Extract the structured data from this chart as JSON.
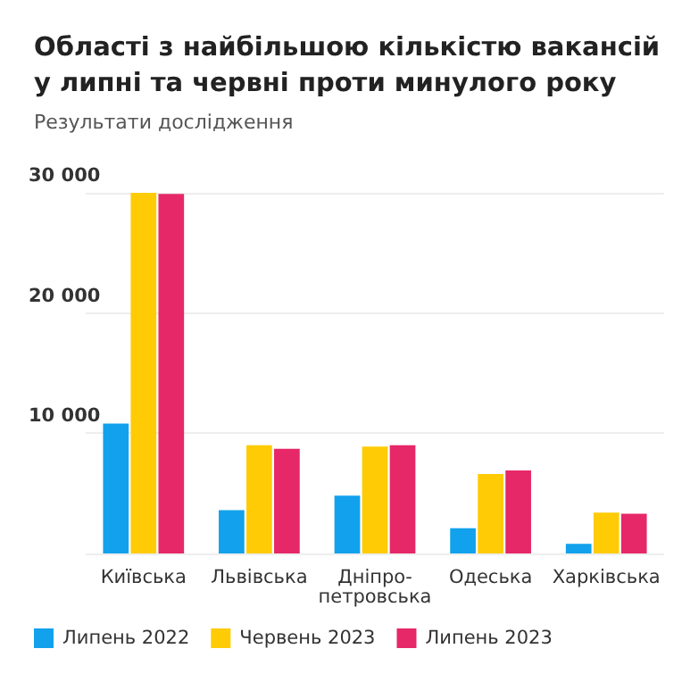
{
  "chart_data": {
    "type": "bar",
    "title": "Області з найбільшою кількістю вакансій\nу липні та червні проти минулого року",
    "subtitle": "Результати дослідження",
    "categories": [
      "Київська",
      "Львівська",
      "Дніпро-петровська",
      "Одеська",
      "Харківська"
    ],
    "series": [
      {
        "name": "Липень 2022",
        "color": "#12a1ec",
        "values": [
          10800,
          3600,
          4800,
          2100,
          800
        ]
      },
      {
        "name": "Червень 2023",
        "color": "#ffcb05",
        "values": [
          30000,
          9000,
          8900,
          6600,
          3400
        ]
      },
      {
        "name": "Липень 2023",
        "color": "#e62868",
        "values": [
          29900,
          8700,
          9000,
          6900,
          3300
        ]
      }
    ],
    "ylim": [
      0,
      30000
    ],
    "yticks": [
      {
        "value": 0,
        "label": null
      },
      {
        "value": 10000,
        "label": "10 000"
      },
      {
        "value": 20000,
        "label": "20 000"
      },
      {
        "value": 30000,
        "label": "30 000"
      }
    ],
    "grid": "y",
    "legend": "bottom"
  }
}
